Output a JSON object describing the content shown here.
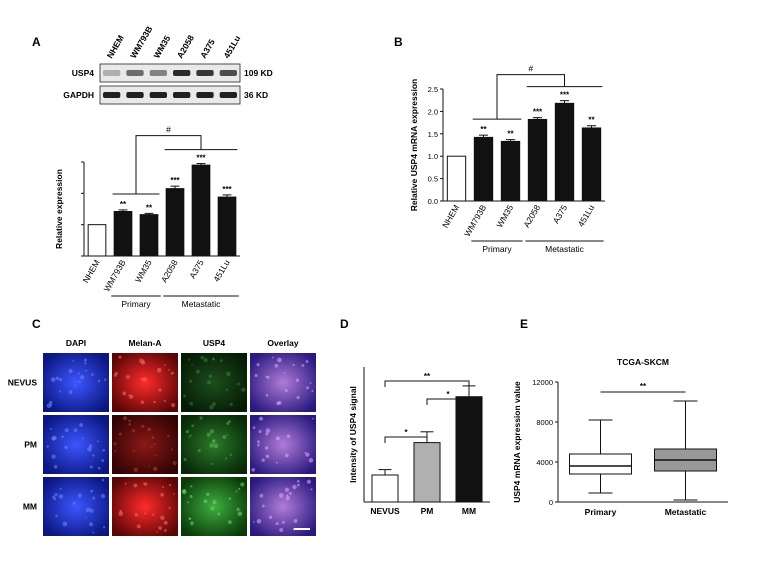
{
  "panels": {
    "A": {
      "letter": "A",
      "blot": {
        "lanes": [
          "NHEM",
          "WM793B",
          "WM35",
          "A2058",
          "A375",
          "451Lu"
        ],
        "rows": [
          {
            "label": "USP4",
            "size": "109 KD",
            "intensity": [
              0.25,
              0.55,
              0.45,
              0.85,
              0.8,
              0.7
            ]
          },
          {
            "label": "GAPDH",
            "size": "36 KD",
            "intensity": [
              0.9,
              0.9,
              0.9,
              0.9,
              0.9,
              0.9
            ]
          }
        ]
      }
    },
    "B": {
      "letter": "B"
    },
    "C": {
      "letter": "C",
      "columns": [
        "DAPI",
        "Melan-A",
        "USP4",
        "Overlay"
      ],
      "rows": [
        "NEVUS",
        "PM",
        "MM"
      ]
    },
    "D": {
      "letter": "D"
    },
    "E": {
      "letter": "E"
    }
  },
  "chart_data": [
    {
      "id": "A",
      "type": "bar",
      "categories": [
        "NHEM",
        "WM793B",
        "WM35",
        "A2058",
        "A375",
        "451Lu"
      ],
      "values": [
        1.0,
        1.42,
        1.32,
        2.15,
        2.9,
        1.88
      ],
      "errors": [
        0,
        0.05,
        0.04,
        0.08,
        0.05,
        0.07
      ],
      "significance": [
        "",
        "**",
        "**",
        "***",
        "***",
        "***"
      ],
      "fills": [
        "#ffffff",
        "#111111",
        "#111111",
        "#111111",
        "#111111",
        "#111111"
      ],
      "ylabel": "Relative expression",
      "ylim": [
        0,
        3
      ],
      "groups": [
        {
          "label": "Primary",
          "from": 1,
          "to": 2
        },
        {
          "label": "Metastatic",
          "from": 3,
          "to": 5
        }
      ],
      "comparison_label": "#"
    },
    {
      "id": "B",
      "type": "bar",
      "categories": [
        "NHEM",
        "WM793B",
        "WM35",
        "A2058",
        "A375",
        "451Lu"
      ],
      "values": [
        1.0,
        1.42,
        1.33,
        1.82,
        2.18,
        1.63
      ],
      "errors": [
        0,
        0.05,
        0.04,
        0.04,
        0.06,
        0.05
      ],
      "significance": [
        "",
        "**",
        "**",
        "***",
        "***",
        "**"
      ],
      "fills": [
        "#ffffff",
        "#111111",
        "#111111",
        "#111111",
        "#111111",
        "#111111"
      ],
      "ylabel": "Relative USP4 mRNA expression",
      "ylim": [
        0,
        2.5
      ],
      "yticks": [
        "0.0",
        "0.5",
        "1.0",
        "1.5",
        "2.0",
        "2.5"
      ],
      "groups": [
        {
          "label": "Primary",
          "from": 1,
          "to": 2
        },
        {
          "label": "Metastatic",
          "from": 3,
          "to": 5
        }
      ],
      "comparison_label": "#"
    },
    {
      "id": "D",
      "type": "bar",
      "categories": [
        "NEVUS",
        "PM",
        "MM"
      ],
      "values": [
        10,
        22,
        39
      ],
      "errors": [
        2,
        4,
        4
      ],
      "fills": [
        "#ffffff",
        "#b0b0b0",
        "#111111"
      ],
      "ylabel": "Intensity of USP4 signal",
      "ylim": [
        0,
        50
      ],
      "comparisons": [
        {
          "from": 0,
          "to": 1,
          "label": "*"
        },
        {
          "from": 1,
          "to": 2,
          "label": "*"
        },
        {
          "from": 0,
          "to": 2,
          "label": "**"
        }
      ]
    },
    {
      "id": "E",
      "type": "box",
      "title": "TCGA-SKCM",
      "categories": [
        "Primary",
        "Metastatic"
      ],
      "boxes": [
        {
          "min": 900,
          "q1": 2800,
          "median": 3600,
          "q3": 4800,
          "max": 8200,
          "fill": "#ffffff"
        },
        {
          "min": 200,
          "q1": 3100,
          "median": 4200,
          "q3": 5300,
          "max": 10100,
          "fill": "#999999"
        }
      ],
      "ylabel": "USP4 mRNA expression value",
      "ylim": [
        0,
        12000
      ],
      "yticks": [
        "0",
        "4000",
        "8000",
        "12000"
      ],
      "comparison_label": "**"
    }
  ]
}
